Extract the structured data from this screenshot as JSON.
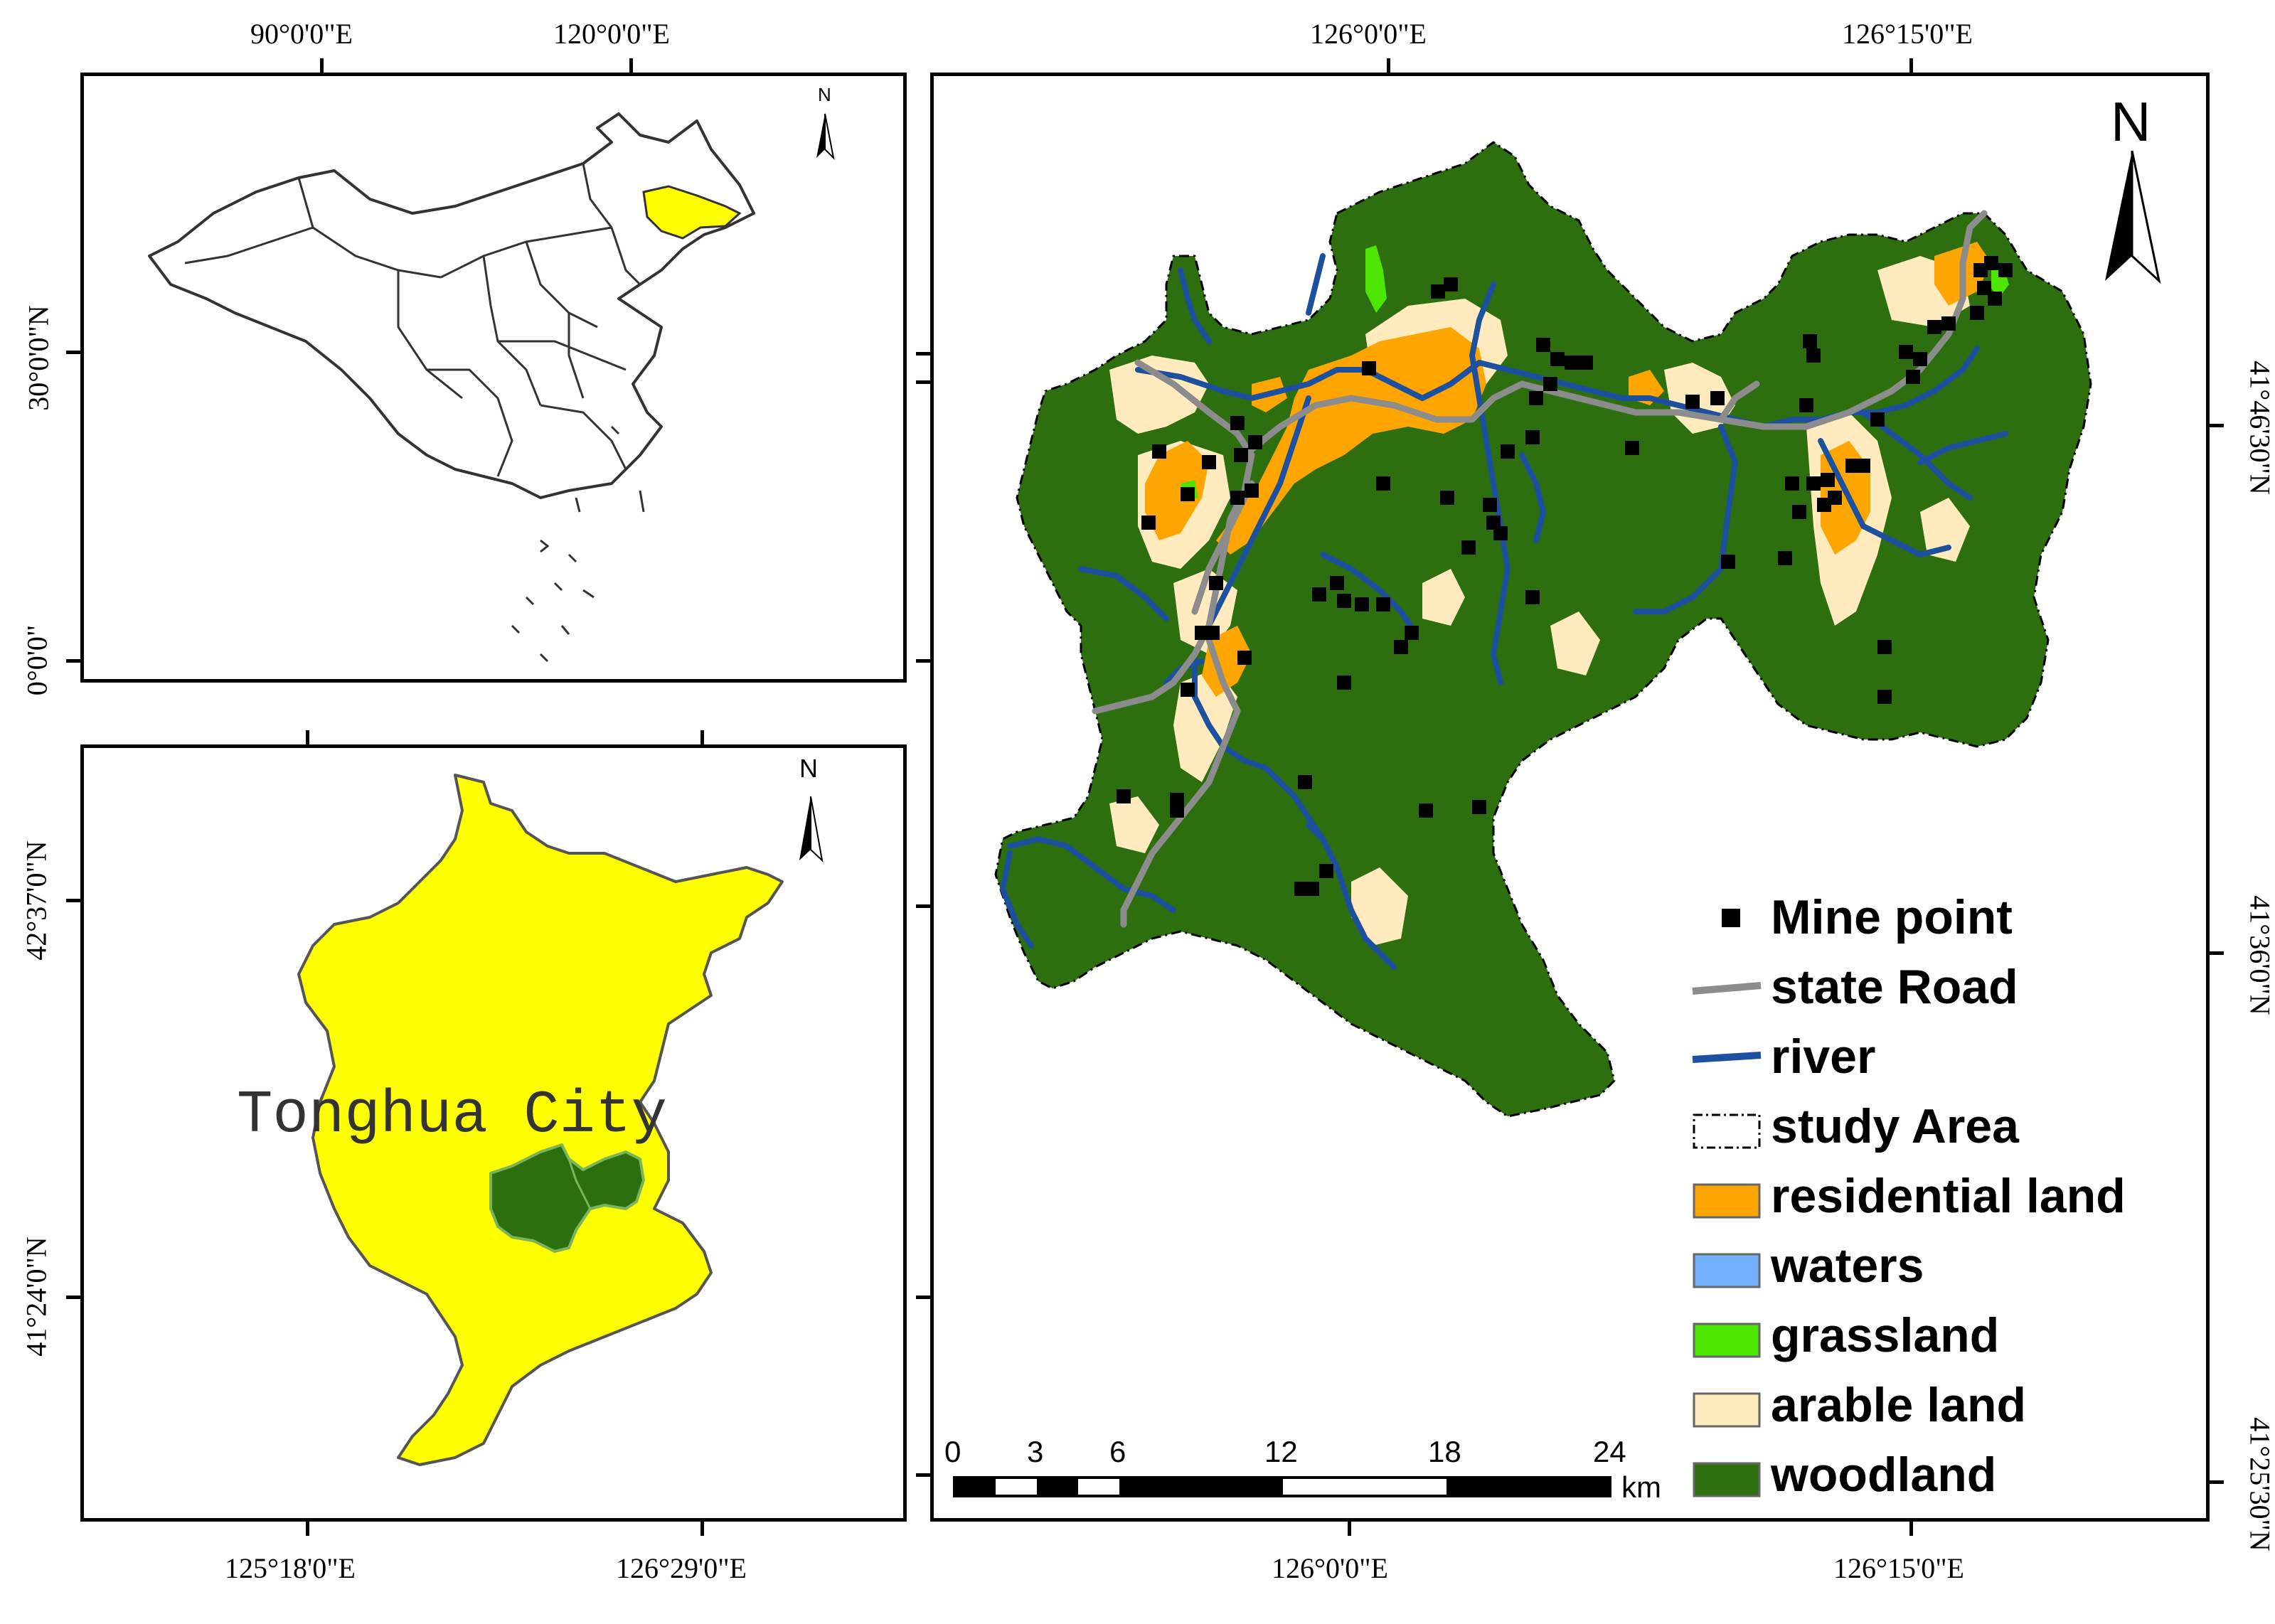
{
  "china_map": {
    "top_labels": [
      "90°0'0\"E",
      "120°0'0\"E"
    ],
    "left_labels": [
      "30°0'0\"N",
      "0°0'0\""
    ],
    "north_letter": "N",
    "highlight_color": "#ffff00"
  },
  "city_map": {
    "bottom_labels": [
      "125°18'0\"E",
      "126°29'0\"E"
    ],
    "left_labels": [
      "42°37'0\"N",
      "41°24'0\"N"
    ],
    "city_label": "Tonghua City",
    "north_letter": "N",
    "city_fill": "#ffff00",
    "study_fill": "#2d6e0f"
  },
  "study_map": {
    "top_labels": [
      "126°0'0\"E",
      "126°15'0\"E"
    ],
    "bottom_labels": [
      "126°0'0\"E",
      "126°15'0\"E"
    ],
    "right_labels": [
      "41°46'30\"N",
      "41°36'0\"N",
      "41°25'30\"N"
    ],
    "north_letter": "N",
    "scale": {
      "ticks": [
        "0",
        "3",
        "6",
        "12",
        "18",
        "24"
      ],
      "unit": "km"
    },
    "legend": [
      {
        "label": "Mine point",
        "icon": "black-square",
        "color": "#000000"
      },
      {
        "label": "state Road",
        "icon": "gray-line",
        "color": "#8c8c8c"
      },
      {
        "label": "river",
        "icon": "blue-line",
        "color": "#1e50a0"
      },
      {
        "label": "study Area",
        "icon": "dashed-box",
        "color": "#000000"
      },
      {
        "label": "residential land",
        "icon": "swatch",
        "color": "#ffa500"
      },
      {
        "label": "waters",
        "icon": "swatch",
        "color": "#73b2ff"
      },
      {
        "label": "grassland",
        "icon": "swatch",
        "color": "#4ce600"
      },
      {
        "label": "arable land",
        "icon": "swatch",
        "color": "#ffebbe"
      },
      {
        "label": "woodland",
        "icon": "swatch",
        "color": "#2d6e0f"
      }
    ]
  }
}
